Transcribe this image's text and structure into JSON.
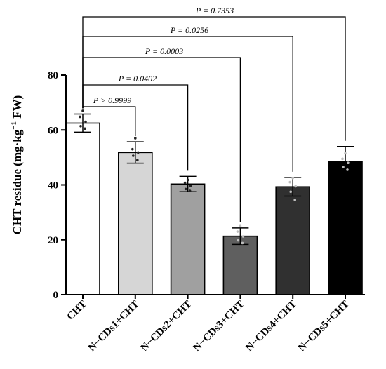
{
  "chart_data": {
    "type": "bar",
    "ylabel": "CHT residue (mg·kg⁻¹ FW)",
    "ylabel_parts": {
      "main": "CHT residue (mg·kg",
      "sup": "−1",
      "tail": " FW)"
    },
    "ylim": [
      0,
      80
    ],
    "yticks": [
      0,
      20,
      40,
      60,
      80
    ],
    "yticks_labels": [
      "0",
      "20",
      "40",
      "60",
      "80"
    ],
    "categories": [
      "CHT",
      "N−CDs1+CHT",
      "N−CDs2+CHT",
      "N−CDs3+CHT",
      "N−CDs4+CHT",
      "N−CDs5+CHT"
    ],
    "values": [
      62.5,
      51.8,
      40.3,
      21.3,
      39.3,
      48.5
    ],
    "errors": [
      3.3,
      3.9,
      2.8,
      3.0,
      3.4,
      5.5
    ],
    "bar_colors": [
      "#ffffff",
      "#d6d6d6",
      "#a0a0a0",
      "#5f5f5f",
      "#303030",
      "#000000"
    ],
    "points": [
      [
        67.0,
        64.8,
        63.0,
        61.4,
        60.5
      ],
      [
        57.0,
        53.0,
        51.8,
        50.6,
        49.0
      ],
      [
        41.8,
        40.8,
        39.6,
        38.5,
        37.8
      ],
      [
        25.0,
        23.0,
        21.2,
        19.8,
        18.8
      ],
      [
        42.5,
        41.0,
        39.5,
        37.5,
        34.5
      ],
      [
        51.5,
        49.5,
        48.0,
        46.5,
        45.5
      ]
    ],
    "grid": false,
    "comparisons": [
      {
        "from": 0,
        "to": 1,
        "label": "P > 0.9999"
      },
      {
        "from": 0,
        "to": 2,
        "label": "P = 0.0402"
      },
      {
        "from": 0,
        "to": 3,
        "label": "P = 0.0003"
      },
      {
        "from": 0,
        "to": 4,
        "label": "P = 0.0256"
      },
      {
        "from": 0,
        "to": 5,
        "label": "P = 0.7353"
      }
    ]
  }
}
